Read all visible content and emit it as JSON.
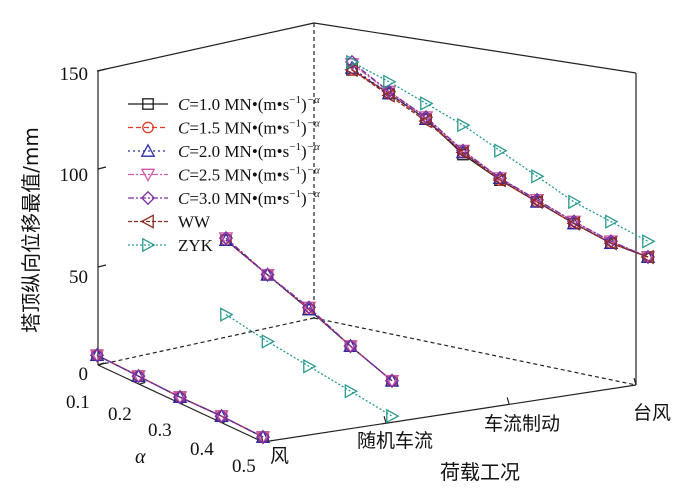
{
  "chart_data": {
    "type": "line",
    "projection": "3d",
    "ylabel": "塔顶纵向位移最值/mm",
    "xlabel": "荷载工况",
    "zlabel": "α",
    "y_ticks": [
      "0",
      "50",
      "100",
      "150"
    ],
    "ylim": [
      0,
      150
    ],
    "x_categories": [
      "风",
      "随机车流",
      "车流制动",
      "台风"
    ],
    "alpha_ticks": [
      "0.1",
      "0.2",
      "0.3",
      "0.4",
      "0.5"
    ],
    "alpha_values": [
      0.1,
      0.2,
      0.3,
      0.4,
      0.5
    ],
    "legend_position": "upper-left",
    "series": [
      {
        "name": "C=1.0 MN•(m•s⁻¹)⁻α",
        "prefix": "C",
        "text": "=1.0 MN•(m•s",
        "color": "#1a1a1a",
        "dash": "",
        "marker": "square",
        "values": {
          "风": [
            5,
            4,
            3,
            3,
            2
          ],
          "随机车流": [
            53,
            45,
            37,
            28,
            20
          ],
          "台风": [
            147,
            138,
            128,
            113,
            103,
            95,
            87,
            80,
            76
          ]
        }
      },
      {
        "name": "C=1.5 MN•(m•s⁻¹)⁻α",
        "prefix": "C",
        "text": "=1.5 MN•(m•s",
        "color": "#e23b2a",
        "dash": "5,3",
        "marker": "circle",
        "values": {
          "风": [
            5,
            4,
            3,
            3,
            2
          ],
          "随机车流": [
            53,
            45,
            37,
            28,
            20
          ],
          "台风": [
            147,
            138,
            128,
            114,
            103,
            95,
            87,
            80,
            76
          ]
        }
      },
      {
        "name": "C=2.0 MN•(m•s⁻¹)⁻α",
        "prefix": "C",
        "text": "=2.0 MN•(m•s",
        "color": "#2a2aa8",
        "dash": "2,3",
        "marker": "triangle-up",
        "values": {
          "风": [
            5,
            4,
            3,
            3,
            2
          ],
          "随机车流": [
            53,
            45,
            37,
            28,
            20
          ],
          "台风": [
            148,
            138,
            128,
            114,
            104,
            95,
            87,
            80,
            76
          ]
        }
      },
      {
        "name": "C=2.5 MN•(m•s⁻¹)⁻α",
        "prefix": "C",
        "text": "=2.5 MN•(m•s",
        "color": "#d25aa8",
        "dash": "6,2,2,2",
        "marker": "triangle-down",
        "values": {
          "风": [
            5,
            4,
            3,
            3,
            2
          ],
          "随机车流": [
            54,
            45,
            38,
            28,
            20
          ],
          "台风": [
            150,
            139,
            129,
            115,
            104,
            96,
            88,
            81,
            76
          ]
        }
      },
      {
        "name": "C=3.0 MN•(m•s⁻¹)⁻α",
        "prefix": "C",
        "text": "=3.0 MN•(m•s",
        "color": "#7b2fa0",
        "dash": "6,2,2,2",
        "marker": "diamond",
        "values": {
          "风": [
            5,
            4,
            3,
            3,
            2
          ],
          "随机车流": [
            54,
            45,
            38,
            28,
            20
          ],
          "台风": [
            151,
            139,
            129,
            115,
            104,
            96,
            88,
            81,
            76
          ]
        }
      },
      {
        "name": "WW",
        "prefix": "",
        "text": "WW",
        "color": "#8a2a20",
        "dash": "4,2",
        "marker": "triangle-left",
        "values": {
          "台风": [
            147,
            137,
            127,
            114,
            103,
            95,
            87,
            80,
            76
          ]
        }
      },
      {
        "name": "ZYK",
        "prefix": "",
        "text": "ZYK",
        "color": "#2a9a8e",
        "dash": "2,2",
        "marker": "triangle-right",
        "values": {
          "随机车流": [
            15,
            11,
            8,
            5,
            2
          ],
          "台风": [
            151,
            144,
            136,
            128,
            118,
            108,
            98,
            91,
            84
          ]
        }
      }
    ]
  }
}
